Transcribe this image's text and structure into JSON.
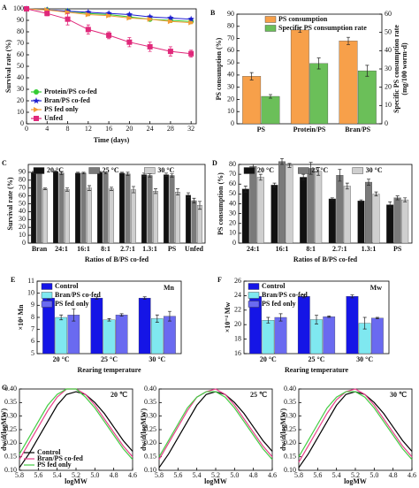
{
  "chart_data": [
    {
      "type": "line",
      "label": "A",
      "xlabel": "Time (days)",
      "ylabel": "Survival rate (%)",
      "x": [
        0,
        4,
        8,
        12,
        16,
        20,
        24,
        28,
        32
      ],
      "xlim": [
        0,
        33
      ],
      "xticks": [
        0,
        4,
        8,
        12,
        16,
        20,
        24,
        28,
        32
      ],
      "ylim": [
        0,
        100
      ],
      "yticks": [
        0,
        10,
        20,
        30,
        40,
        50,
        60,
        70,
        80,
        90,
        100
      ],
      "legend": "lower left",
      "series": [
        {
          "name": "Protein/PS co-fed",
          "color": "#33cc33",
          "marker": "circle",
          "values": [
            100,
            99,
            98,
            96,
            95,
            93,
            91,
            90,
            89
          ],
          "errors": [
            0.5,
            1,
            1,
            1,
            1,
            1,
            1,
            1,
            1
          ]
        },
        {
          "name": "Bran/PS co-fed",
          "color": "#1f1fd0",
          "marker": "star",
          "values": [
            100,
            99,
            98,
            97,
            96,
            95,
            93,
            92,
            91
          ],
          "errors": [
            0.5,
            1,
            1,
            1,
            1,
            1,
            1,
            1,
            1
          ]
        },
        {
          "name": "PS fed only",
          "color": "#f39c35",
          "marker": "triangle",
          "values": [
            100,
            99,
            97,
            95,
            94,
            92,
            91,
            89,
            88
          ],
          "errors": [
            0.5,
            1,
            1,
            1,
            1,
            1,
            1,
            1,
            1
          ]
        },
        {
          "name": "Unfed",
          "color": "#e0287a",
          "marker": "square",
          "values": [
            100,
            96,
            91,
            82,
            77,
            71,
            67,
            63,
            61
          ],
          "errors": [
            0.5,
            2,
            5,
            4,
            3,
            4,
            4,
            4,
            3
          ]
        }
      ]
    },
    {
      "type": "bar",
      "label": "B",
      "ylabel": "PS consumption (%)",
      "y2label": [
        "Specific PS consumption rate",
        "(mg/100 worm·d)"
      ],
      "categories": [
        "PS",
        "Protein/PS",
        "Bran/PS"
      ],
      "ylim": [
        0,
        90
      ],
      "yticks": [
        0,
        10,
        20,
        30,
        40,
        50,
        60,
        70,
        80,
        90
      ],
      "y2lim": [
        0,
        60
      ],
      "y2ticks": [
        0,
        10,
        20,
        30,
        40,
        50,
        60
      ],
      "legend": "upper center",
      "series": [
        {
          "name": "PS consumption",
          "color": "#f7a04a",
          "values": [
            39,
            77,
            68
          ],
          "errors": [
            3,
            2,
            3
          ]
        },
        {
          "name": "Specific PS consumption rate",
          "color": "#6bbf59",
          "axis": "y2",
          "values": [
            15,
            33,
            29
          ],
          "errors": [
            1,
            3,
            3
          ]
        }
      ]
    },
    {
      "type": "bar",
      "label": "C",
      "xlabel": "Ratios of B/PS co-fed",
      "ylabel": "Survival rate (%)",
      "categories": [
        "Bran",
        "24:1",
        "16:1",
        "8:1",
        "2.7:1",
        "1.3:1",
        "PS",
        "Unfed"
      ],
      "ylim": [
        0,
        100
      ],
      "yticks": [
        0,
        10,
        20,
        30,
        40,
        50,
        60,
        70,
        80,
        90
      ],
      "legend": "top",
      "series": [
        {
          "name": "20 °C",
          "color": "#111111",
          "values": [
            90,
            91,
            89,
            90,
            89,
            87,
            87,
            61
          ],
          "errors": [
            1,
            1,
            1,
            1,
            1,
            2,
            2,
            3
          ]
        },
        {
          "name": "25 °C",
          "color": "#7a7a7a",
          "values": [
            90,
            89,
            89,
            89,
            88,
            86,
            86,
            54
          ],
          "errors": [
            1,
            2,
            1,
            1,
            2,
            2,
            2,
            3
          ]
        },
        {
          "name": "30 °C",
          "color": "#cfcfcf",
          "values": [
            69,
            68,
            70,
            69,
            68,
            66,
            65,
            48
          ],
          "errors": [
            1,
            2,
            3,
            2,
            4,
            3,
            4,
            5
          ]
        }
      ]
    },
    {
      "type": "bar",
      "label": "D",
      "xlabel": "Ratios of B/PS co-fed",
      "ylabel": "PS consumption (%)",
      "categories": [
        "24:1",
        "16:1",
        "8:1",
        "2.7:1",
        "1.3:1",
        "PS"
      ],
      "ylim": [
        0,
        80
      ],
      "yticks": [
        0,
        10,
        20,
        30,
        40,
        50,
        60,
        70,
        80
      ],
      "legend": "top",
      "series": [
        {
          "name": "20 °C",
          "color": "#111111",
          "values": [
            55,
            59,
            67,
            45,
            43,
            39
          ],
          "errors": [
            3,
            2,
            3,
            1,
            1,
            3
          ]
        },
        {
          "name": "25 °C",
          "color": "#7a7a7a",
          "values": [
            78,
            83,
            76,
            69,
            62,
            46
          ],
          "errors": [
            2,
            3,
            6,
            6,
            3,
            2
          ]
        },
        {
          "name": "30 °C",
          "color": "#cfcfcf",
          "values": [
            67,
            79,
            73,
            58,
            50,
            44
          ],
          "errors": [
            3,
            2,
            4,
            3,
            2,
            2
          ]
        }
      ]
    },
    {
      "type": "bar",
      "label": "E",
      "xlabel": "Rearing temperature",
      "ylabel": "×10⁴ Mn",
      "annotation": "Mn",
      "categories": [
        "20 °C",
        "25 °C",
        "30 °C"
      ],
      "ylim": [
        5,
        11
      ],
      "yticks": [
        5,
        6,
        7,
        8,
        9,
        10,
        11
      ],
      "legend": "upper left",
      "series": [
        {
          "name": "Control",
          "color": "#1515e6",
          "values": [
            9.6,
            9.6,
            9.6
          ],
          "errors": [
            0.1,
            0.1,
            0.1
          ]
        },
        {
          "name": "Bran/PS co-fed",
          "color": "#7fe8f0",
          "values": [
            8.0,
            7.8,
            7.9
          ],
          "errors": [
            0.2,
            0.1,
            0.3
          ]
        },
        {
          "name": "PS fed only",
          "color": "#6a6af0",
          "values": [
            8.2,
            8.2,
            8.1
          ],
          "errors": [
            0.5,
            0.1,
            0.4
          ]
        }
      ]
    },
    {
      "type": "bar",
      "label": "F",
      "xlabel": "Rearing temperature",
      "ylabel": "×10⁻⁴ Mw",
      "annotation": "Mw",
      "categories": [
        "20 °C",
        "25 °C",
        "30 °C"
      ],
      "ylim": [
        16,
        26
      ],
      "yticks": [
        16,
        18,
        20,
        22,
        24,
        26
      ],
      "legend": "upper left",
      "series": [
        {
          "name": "Control",
          "color": "#1515e6",
          "values": [
            23.9,
            23.9,
            23.9
          ],
          "errors": [
            0.2,
            0.2,
            0.2
          ]
        },
        {
          "name": "Bran/PS co-fed",
          "color": "#7fe8f0",
          "values": [
            20.6,
            20.7,
            20.2
          ],
          "errors": [
            0.4,
            0.6,
            0.8
          ]
        },
        {
          "name": "PS fed only",
          "color": "#6a6af0",
          "values": [
            21.0,
            21.1,
            20.9
          ],
          "errors": [
            0.5,
            0.1,
            0.1
          ]
        }
      ]
    },
    {
      "type": "line",
      "label": "G",
      "title": "20 ℃",
      "xlabel": "logMW",
      "ylabel": "dw/d(logMW)",
      "x": [
        5.8,
        5.7,
        5.6,
        5.5,
        5.4,
        5.3,
        5.2,
        5.1,
        5.0,
        4.9,
        4.8,
        4.7,
        4.6
      ],
      "xlim": [
        5.8,
        4.6
      ],
      "xticks": [
        5.8,
        5.6,
        5.4,
        5.2,
        {
          "value": 5,
          "label": "5.0"
        },
        4.8,
        4.6
      ],
      "ylim": [
        0.1,
        0.4
      ],
      "yticks": [
        {
          "value": 0.1,
          "label": "0.10"
        },
        0.15,
        {
          "value": 0.2,
          "label": "0.20"
        },
        0.25,
        {
          "value": 0.3,
          "label": "0.30"
        },
        0.35,
        {
          "value": 0.4,
          "label": "0.40"
        }
      ],
      "legend": "lower left",
      "series": [
        {
          "name": "Control",
          "color": "#000000",
          "values": [
            0.11,
            0.16,
            0.22,
            0.28,
            0.34,
            0.38,
            0.39,
            0.38,
            0.35,
            0.31,
            0.26,
            0.21,
            0.17
          ]
        },
        {
          "name": "Bran/PS co-fed",
          "color": "#e8408a",
          "values": [
            0.14,
            0.2,
            0.26,
            0.32,
            0.37,
            0.4,
            0.4,
            0.38,
            0.34,
            0.29,
            0.24,
            0.19,
            0.15
          ]
        },
        {
          "name": "PS fed only",
          "color": "#44cc44",
          "values": [
            0.16,
            0.22,
            0.28,
            0.34,
            0.38,
            0.4,
            0.4,
            0.37,
            0.33,
            0.28,
            0.23,
            0.18,
            0.14
          ]
        }
      ]
    },
    {
      "type": "line",
      "title": "25 ℃",
      "xlabel": "logMW",
      "ylabel": "dw/d(logMW)",
      "x": [
        5.8,
        5.7,
        5.6,
        5.5,
        5.4,
        5.3,
        5.2,
        5.1,
        5.0,
        4.9,
        4.8,
        4.7,
        4.6
      ],
      "xlim": [
        5.8,
        4.6
      ],
      "xticks": [
        5.8,
        5.6,
        5.4,
        5.2,
        {
          "value": 5,
          "label": "5.0"
        },
        4.8,
        4.6
      ],
      "ylim": [
        0.1,
        0.4
      ],
      "yticks": [
        {
          "value": 0.1,
          "label": "0.10"
        },
        0.15,
        {
          "value": 0.2,
          "label": "0.20"
        },
        0.25,
        {
          "value": 0.3,
          "label": "0.30"
        },
        0.35,
        {
          "value": 0.4,
          "label": "0.40"
        }
      ],
      "series": [
        {
          "color": "#000000",
          "values": [
            0.11,
            0.16,
            0.22,
            0.28,
            0.34,
            0.38,
            0.39,
            0.38,
            0.35,
            0.31,
            0.26,
            0.21,
            0.17
          ]
        },
        {
          "color": "#e8408a",
          "values": [
            0.14,
            0.2,
            0.26,
            0.32,
            0.37,
            0.39,
            0.4,
            0.38,
            0.34,
            0.29,
            0.24,
            0.19,
            0.15
          ]
        },
        {
          "color": "#44cc44",
          "values": [
            0.15,
            0.21,
            0.27,
            0.33,
            0.37,
            0.39,
            0.39,
            0.37,
            0.33,
            0.28,
            0.23,
            0.18,
            0.14
          ]
        }
      ]
    },
    {
      "type": "line",
      "title": "30 ℃",
      "xlabel": "logMW",
      "ylabel": "dw/d(logMW)",
      "x": [
        5.8,
        5.7,
        5.6,
        5.5,
        5.4,
        5.3,
        5.2,
        5.1,
        5.0,
        4.9,
        4.8,
        4.7,
        4.6
      ],
      "xlim": [
        5.8,
        4.6
      ],
      "xticks": [
        5.8,
        5.6,
        5.4,
        5.2,
        {
          "value": 5,
          "label": "5.0"
        },
        4.8,
        4.6
      ],
      "ylim": [
        0.1,
        0.4
      ],
      "yticks": [
        {
          "value": 0.1,
          "label": "0.10"
        },
        0.15,
        {
          "value": 0.2,
          "label": "0.20"
        },
        0.25,
        {
          "value": 0.3,
          "label": "0.30"
        },
        0.35,
        {
          "value": 0.4,
          "label": "0.40"
        }
      ],
      "series": [
        {
          "color": "#000000",
          "values": [
            0.11,
            0.16,
            0.22,
            0.28,
            0.34,
            0.38,
            0.39,
            0.38,
            0.35,
            0.31,
            0.26,
            0.21,
            0.17
          ]
        },
        {
          "color": "#e8408a",
          "values": [
            0.13,
            0.19,
            0.25,
            0.31,
            0.36,
            0.39,
            0.4,
            0.38,
            0.34,
            0.29,
            0.24,
            0.19,
            0.15
          ]
        },
        {
          "color": "#44cc44",
          "values": [
            0.15,
            0.21,
            0.27,
            0.33,
            0.37,
            0.39,
            0.39,
            0.37,
            0.33,
            0.28,
            0.23,
            0.18,
            0.14
          ]
        }
      ]
    }
  ]
}
